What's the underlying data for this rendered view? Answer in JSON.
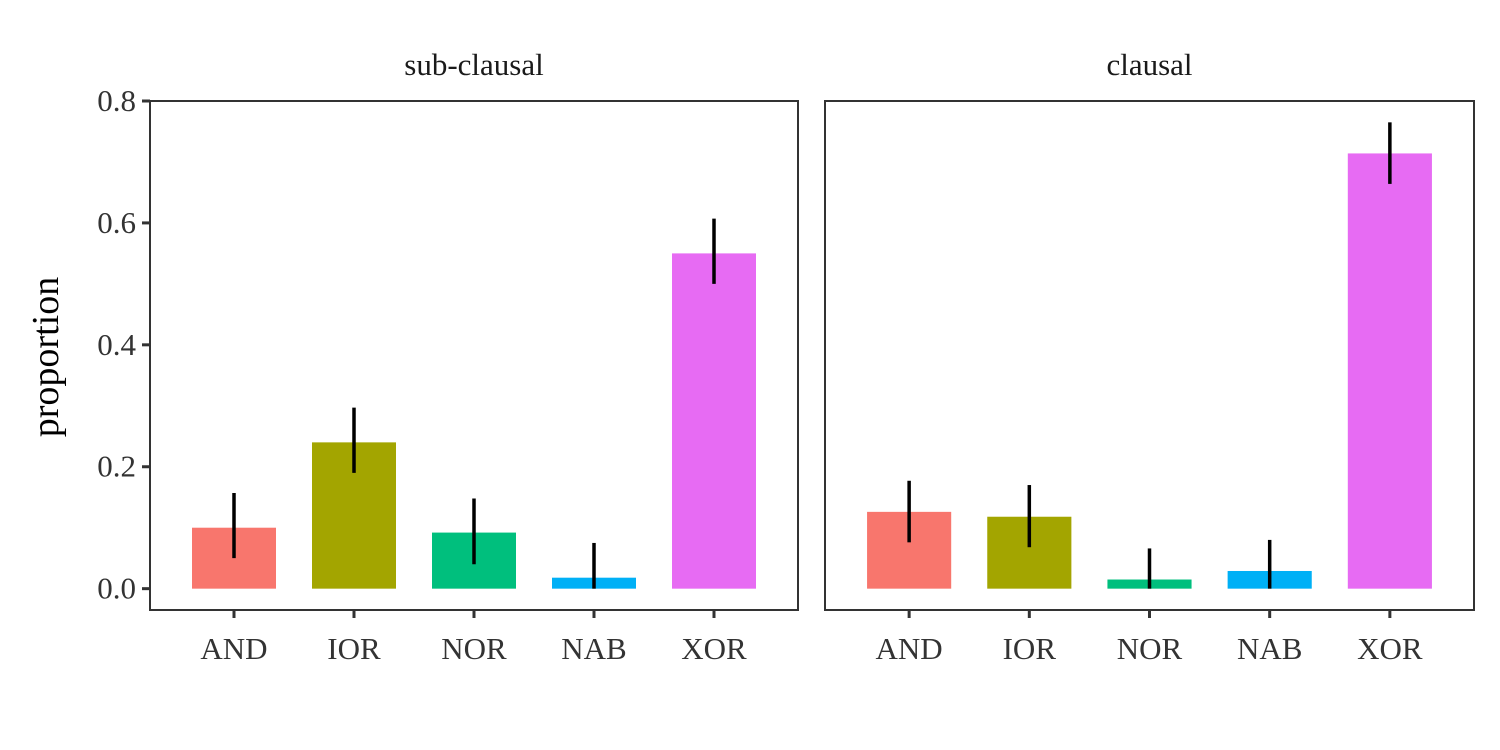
{
  "chart_data": {
    "type": "bar",
    "ylabel": "proportion",
    "xlabel": "",
    "ylim": [
      -0.035,
      0.8
    ],
    "yticks": [
      0.0,
      0.2,
      0.4,
      0.6,
      0.8
    ],
    "ytick_labels": [
      "0.0",
      "0.2",
      "0.4",
      "0.6",
      "0.8"
    ],
    "categories": [
      "AND",
      "IOR",
      "NOR",
      "NAB",
      "XOR"
    ],
    "colors": [
      "#F8766D",
      "#A3A500",
      "#00BF7D",
      "#00B0F6",
      "#E76BF3"
    ],
    "grid": false,
    "legend": "none",
    "facets": [
      {
        "title": "sub-clausal",
        "values": [
          0.1,
          0.24,
          0.092,
          0.018,
          0.55
        ],
        "error_low": [
          0.05,
          0.19,
          0.04,
          0.0,
          0.5
        ],
        "error_high": [
          0.157,
          0.297,
          0.148,
          0.075,
          0.607
        ]
      },
      {
        "title": "clausal",
        "values": [
          0.126,
          0.118,
          0.015,
          0.029,
          0.714
        ],
        "error_low": [
          0.076,
          0.068,
          0.0,
          0.0,
          0.664
        ],
        "error_high": [
          0.177,
          0.17,
          0.066,
          0.08,
          0.765
        ]
      }
    ]
  }
}
